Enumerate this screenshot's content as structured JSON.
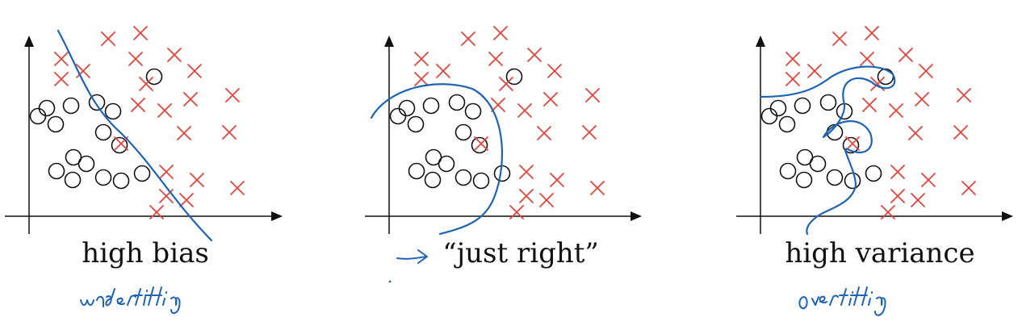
{
  "colors": {
    "axis": "#111111",
    "cross": "#e0453d",
    "circle": "#111111",
    "boundary": "#1f63b4",
    "ink": "#1f63b4"
  },
  "panels": [
    {
      "id": "high-bias",
      "caption": "high bias",
      "annotation": "underfitting"
    },
    {
      "id": "just-right",
      "caption": "“just right”",
      "annotation": ""
    },
    {
      "id": "high-variance",
      "caption": "high variance",
      "annotation": "overfitting"
    }
  ]
}
